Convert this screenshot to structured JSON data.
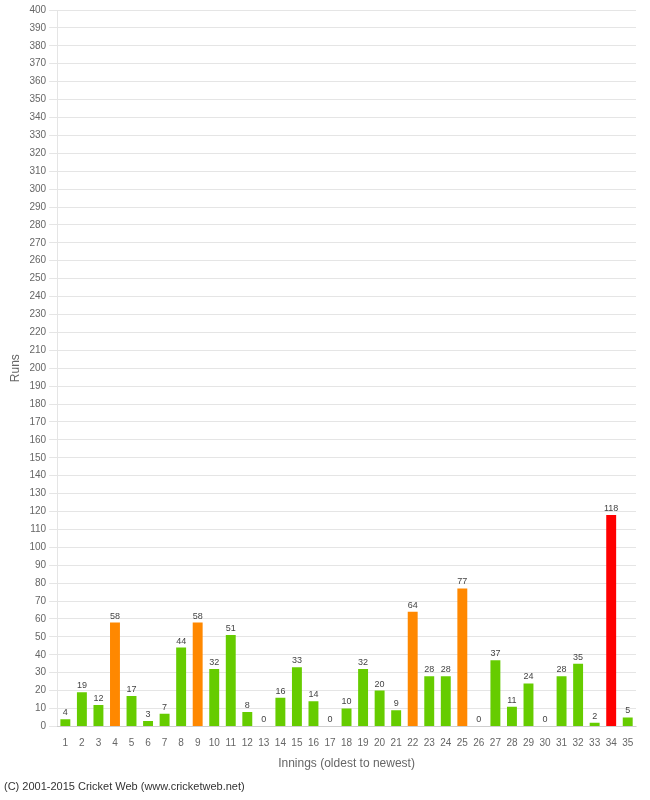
{
  "chart_data": {
    "type": "bar",
    "xlabel": "Innings (oldest to newest)",
    "ylabel": "Runs",
    "categories": [
      "1",
      "2",
      "3",
      "4",
      "5",
      "6",
      "7",
      "8",
      "9",
      "10",
      "11",
      "12",
      "13",
      "14",
      "15",
      "16",
      "17",
      "18",
      "19",
      "20",
      "21",
      "22",
      "23",
      "24",
      "25",
      "26",
      "27",
      "28",
      "29",
      "30",
      "31",
      "32",
      "33",
      "34",
      "35"
    ],
    "values": [
      4,
      19,
      12,
      58,
      17,
      3,
      7,
      44,
      58,
      32,
      51,
      8,
      0,
      16,
      33,
      14,
      0,
      10,
      32,
      20,
      9,
      64,
      28,
      28,
      77,
      0,
      37,
      11,
      24,
      0,
      28,
      35,
      2,
      118,
      5
    ],
    "colors": [
      "#66cc00",
      "#66cc00",
      "#66cc00",
      "#ff8800",
      "#66cc00",
      "#66cc00",
      "#66cc00",
      "#66cc00",
      "#ff8800",
      "#66cc00",
      "#66cc00",
      "#66cc00",
      "#66cc00",
      "#66cc00",
      "#66cc00",
      "#66cc00",
      "#66cc00",
      "#66cc00",
      "#66cc00",
      "#66cc00",
      "#66cc00",
      "#ff8800",
      "#66cc00",
      "#66cc00",
      "#ff8800",
      "#66cc00",
      "#66cc00",
      "#66cc00",
      "#66cc00",
      "#66cc00",
      "#66cc00",
      "#66cc00",
      "#66cc00",
      "#ff0000",
      "#66cc00"
    ],
    "ylim": [
      0,
      400
    ],
    "yticks": [
      0,
      10,
      20,
      30,
      40,
      50,
      60,
      70,
      80,
      90,
      100,
      110,
      120,
      130,
      140,
      150,
      160,
      170,
      180,
      190,
      200,
      210,
      220,
      230,
      240,
      250,
      260,
      270,
      280,
      290,
      300,
      310,
      320,
      330,
      340,
      350,
      360,
      370,
      380,
      390,
      400
    ],
    "grid": true,
    "data_labels": true,
    "annotations": [
      "(C) 2001-2015 Cricket Web (www.cricketweb.net)"
    ]
  }
}
